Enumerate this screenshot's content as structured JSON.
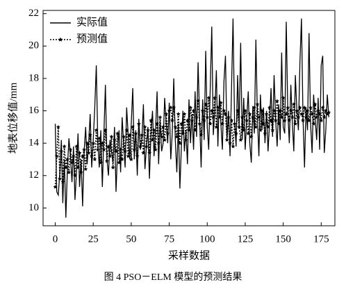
{
  "chart_data": {
    "type": "line",
    "caption": "图 4  PSO－ELM 模型的预测结果",
    "xlabel": "采样数据",
    "ylabel": "地表位移值/mm",
    "legend": "upper left",
    "xlim": [
      -8,
      184
    ],
    "xticks": [
      0,
      25,
      50,
      75,
      100,
      125,
      150,
      175
    ],
    "ylim": [
      8.9,
      22.2
    ],
    "yticks": [
      10,
      12,
      14,
      16,
      18,
      20,
      22
    ],
    "x": [
      0,
      1,
      2,
      3,
      4,
      5,
      6,
      7,
      8,
      9,
      10,
      11,
      12,
      13,
      14,
      15,
      16,
      17,
      18,
      19,
      20,
      21,
      22,
      23,
      24,
      25,
      26,
      27,
      28,
      29,
      30,
      31,
      32,
      33,
      34,
      35,
      36,
      37,
      38,
      39,
      40,
      41,
      42,
      43,
      44,
      45,
      46,
      47,
      48,
      49,
      50,
      51,
      52,
      53,
      54,
      55,
      56,
      57,
      58,
      59,
      60,
      61,
      62,
      63,
      64,
      65,
      66,
      67,
      68,
      69,
      70,
      71,
      72,
      73,
      74,
      75,
      76,
      77,
      78,
      79,
      80,
      81,
      82,
      83,
      84,
      85,
      86,
      87,
      88,
      89,
      90,
      91,
      92,
      93,
      94,
      95,
      96,
      97,
      98,
      99,
      100,
      101,
      102,
      103,
      104,
      105,
      106,
      107,
      108,
      109,
      110,
      111,
      112,
      113,
      114,
      115,
      116,
      117,
      118,
      119,
      120,
      121,
      122,
      123,
      124,
      125,
      126,
      127,
      128,
      129,
      130,
      131,
      132,
      133,
      134,
      135,
      136,
      137,
      138,
      139,
      140,
      141,
      142,
      143,
      144,
      145,
      146,
      147,
      148,
      149,
      150,
      151,
      152,
      153,
      154,
      155,
      156,
      157,
      158,
      159,
      160,
      161,
      162,
      163,
      164,
      165,
      166,
      167,
      168,
      169,
      170,
      171,
      172,
      173,
      174,
      175,
      176,
      177,
      178,
      179,
      180
    ],
    "series": [
      {
        "name": "实际值",
        "color": "#000000",
        "line_style": "solid",
        "marker": "none",
        "values": [
          15.2,
          11.0,
          10.8,
          12.2,
          14.2,
          10.3,
          13.0,
          9.4,
          12.4,
          14.3,
          13.2,
          11.6,
          13.8,
          10.5,
          12.2,
          14.6,
          11.3,
          13.0,
          10.1,
          13.5,
          15.0,
          12.7,
          14.0,
          15.8,
          12.5,
          14.2,
          16.2,
          18.8,
          14.0,
          12.5,
          14.8,
          11.3,
          14.5,
          17.6,
          13.0,
          12.0,
          14.2,
          13.5,
          12.8,
          15.0,
          11.0,
          13.6,
          14.8,
          12.2,
          15.6,
          14.0,
          12.5,
          16.2,
          14.5,
          13.0,
          15.2,
          17.4,
          13.0,
          14.8,
          12.0,
          15.5,
          13.6,
          14.2,
          16.4,
          12.4,
          13.8,
          15.0,
          11.8,
          14.6,
          16.0,
          13.2,
          14.8,
          17.2,
          12.7,
          15.4,
          13.5,
          14.0,
          16.8,
          15.2,
          14.0,
          16.5,
          13.0,
          14.6,
          18.0,
          14.2,
          12.2,
          15.2,
          11.2,
          13.8,
          16.0,
          13.5,
          14.8,
          12.7,
          16.7,
          14.0,
          15.8,
          13.6,
          17.2,
          14.4,
          19.0,
          15.5,
          12.5,
          16.7,
          14.2,
          19.7,
          15.0,
          13.6,
          17.4,
          21.2,
          14.5,
          16.0,
          18.5,
          13.8,
          17.0,
          15.2,
          13.6,
          17.8,
          19.4,
          14.2,
          16.0,
          13.2,
          17.5,
          21.7,
          15.4,
          13.8,
          18.2,
          15.0,
          20.2,
          14.2,
          16.8,
          13.6,
          15.5,
          17.2,
          14.0,
          12.8,
          16.3,
          14.6,
          20.4,
          15.8,
          13.2,
          17.0,
          14.8,
          16.2,
          14.0,
          16.0,
          13.5,
          15.2,
          17.4,
          14.4,
          18.2,
          15.5,
          13.8,
          16.4,
          14.2,
          19.6,
          15.0,
          14.6,
          21.5,
          16.0,
          14.0,
          17.6,
          15.2,
          13.5,
          18.2,
          16.0,
          14.8,
          19.0,
          21.7,
          15.6,
          12.5,
          16.2,
          14.8,
          20.8,
          15.2,
          13.4,
          17.0,
          15.5,
          14.2,
          16.8,
          13.6,
          18.8,
          19.4,
          13.4,
          14.8,
          17.0,
          15.6
        ]
      },
      {
        "name": "预测值",
        "color": "#000000",
        "line_style": "dotted",
        "marker": "star",
        "values": [
          11.3,
          13.2,
          15.0,
          11.8,
          13.5,
          11.6,
          13.8,
          12.5,
          13.0,
          12.2,
          13.6,
          12.8,
          13.2,
          12.0,
          13.8,
          12.5,
          13.4,
          12.2,
          13.2,
          13.6,
          12.4,
          14.0,
          13.4,
          14.5,
          13.2,
          14.0,
          13.0,
          14.8,
          13.6,
          14.3,
          12.8,
          14.0,
          13.6,
          14.8,
          12.9,
          13.8,
          13.2,
          14.4,
          12.5,
          14.2,
          13.5,
          14.6,
          12.8,
          13.6,
          13.0,
          14.4,
          13.5,
          14.8,
          13.2,
          14.5,
          13.0,
          15.0,
          13.6,
          14.6,
          13.2,
          15.2,
          13.8,
          14.5,
          13.4,
          15.0,
          13.8,
          14.8,
          13.4,
          15.4,
          14.2,
          14.8,
          13.6,
          15.2,
          14.0,
          15.6,
          14.4,
          15.0,
          14.2,
          15.8,
          14.6,
          16.0,
          16.2,
          15.4,
          16.2,
          15.0,
          14.4,
          15.8,
          14.0,
          15.2,
          14.6,
          15.8,
          14.2,
          15.4,
          14.8,
          16.2,
          15.4,
          16.0,
          14.8,
          15.6,
          16.6,
          15.2,
          14.5,
          16.0,
          15.4,
          16.4,
          15.6,
          16.8,
          15.2,
          16.0,
          15.6,
          16.8,
          15.0,
          16.2,
          15.6,
          16.5,
          15.2,
          16.0,
          15.8,
          14.2,
          15.6,
          14.0,
          15.4,
          13.8,
          15.2,
          14.6,
          16.0,
          15.0,
          14.2,
          15.6,
          14.8,
          16.0,
          15.4,
          14.6,
          15.8,
          14.4,
          15.6,
          16.2,
          15.0,
          16.4,
          15.6,
          14.8,
          16.0,
          15.2,
          14.6,
          15.8,
          15.0,
          16.2,
          15.4,
          14.8,
          16.0,
          15.4,
          16.6,
          15.2,
          16.0,
          15.6,
          16.8,
          15.4,
          15.8,
          16.2,
          15.4,
          16.0,
          15.6,
          16.4,
          15.2,
          16.0,
          15.6,
          16.2,
          15.8,
          15.4,
          16.2,
          15.6,
          16.0,
          15.4,
          16.2,
          15.8,
          15.2,
          16.4,
          15.6,
          16.0,
          15.8,
          15.4,
          16.2,
          15.6,
          16.0,
          15.8,
          15.9
        ]
      }
    ]
  }
}
